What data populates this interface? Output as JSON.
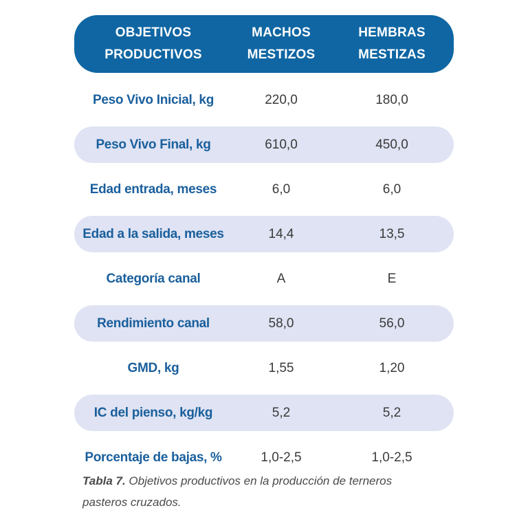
{
  "table": {
    "headers": {
      "objetivos_line1": "OBJETIVOS",
      "objetivos_line2": "PRODUCTIVOS",
      "machos_line1": "MACHOS",
      "machos_line2": "MESTIZOS",
      "hembras_line1": "HEMBRAS",
      "hembras_line2": "MESTIZAS"
    },
    "rows": [
      {
        "label": "Peso Vivo Inicial, kg",
        "machos": "220,0",
        "hembras": "180,0",
        "shaded": false
      },
      {
        "label": "Peso Vivo Final, kg",
        "machos": "610,0",
        "hembras": "450,0",
        "shaded": true
      },
      {
        "label": "Edad entrada, meses",
        "machos": "6,0",
        "hembras": "6,0",
        "shaded": false
      },
      {
        "label": "Edad a la salida, meses",
        "machos": "14,4",
        "hembras": "13,5",
        "shaded": true
      },
      {
        "label": "Categoría canal",
        "machos": "A",
        "hembras": "E",
        "shaded": false
      },
      {
        "label": "Rendimiento canal",
        "machos": "58,0",
        "hembras": "56,0",
        "shaded": true
      },
      {
        "label": "GMD, kg",
        "machos": "1,55",
        "hembras": "1,20",
        "shaded": false
      },
      {
        "label": "IC del pienso, kg/kg",
        "machos": "5,2",
        "hembras": "5,2",
        "shaded": true
      },
      {
        "label": "Porcentaje de bajas, %",
        "machos": "1,0-2,5",
        "hembras": "1,0-2,5",
        "shaded": false
      }
    ]
  },
  "caption": {
    "label": "Tabla 7.",
    "text": " Objetivos productivos en la producción de terneros pasteros cruzados."
  },
  "colors": {
    "header_bg": "#0f66a3",
    "row_shade": "#dfe3f3",
    "label_text": "#1a5f9c"
  }
}
